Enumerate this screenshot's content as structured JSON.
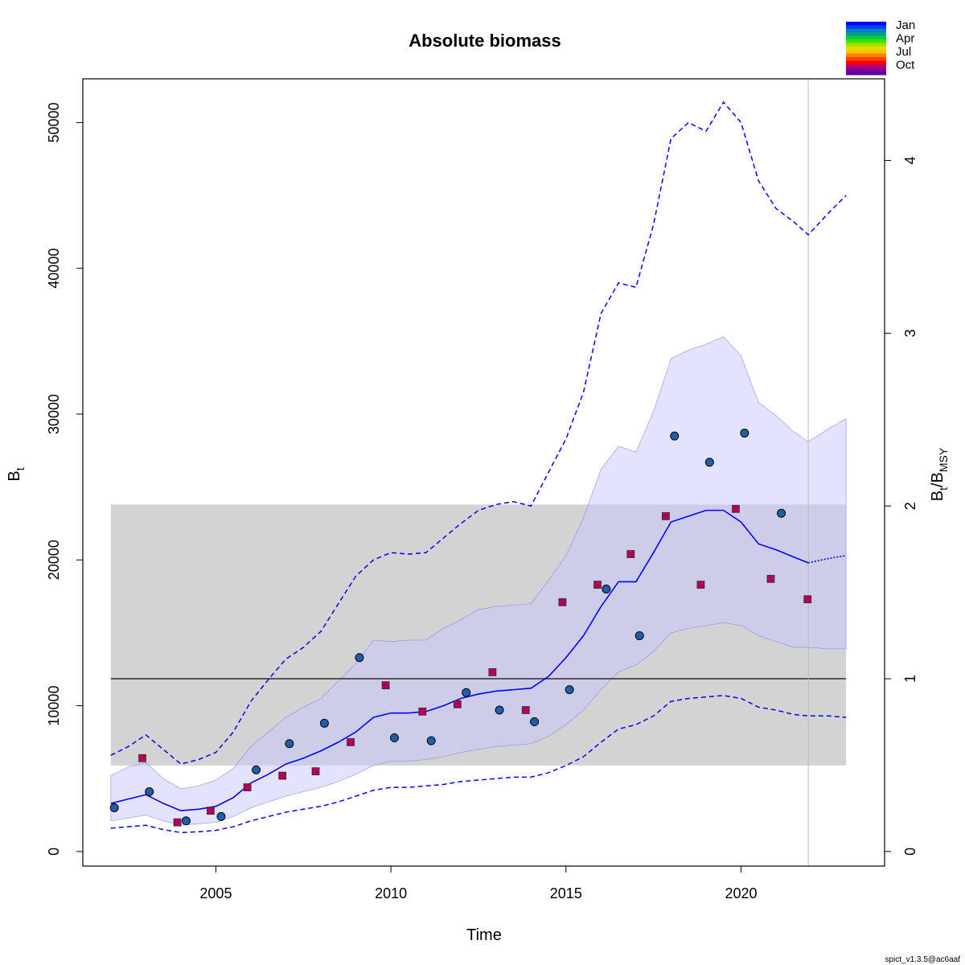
{
  "chart_data": {
    "type": "line",
    "title": "Absolute biomass",
    "xlabel": "Time",
    "ylabel": "B",
    "ylabel_sub": "t",
    "y2label_base": "B",
    "y2label_sub1": "t",
    "y2label_sep": "/B",
    "y2label_sub2": "MSY",
    "xlim": [
      2001.2,
      2024.1
    ],
    "ylim": [
      -1000,
      53000
    ],
    "x_ticks": [
      2005,
      2010,
      2015,
      2020
    ],
    "x_tick_labels": [
      "2005",
      "2010",
      "2015",
      "2020"
    ],
    "y_ticks": [
      0,
      10000,
      20000,
      30000,
      40000,
      50000
    ],
    "y_tick_labels": [
      "0",
      "10000",
      "20000",
      "30000",
      "40000",
      "50000"
    ],
    "y2_ticks": [
      0,
      1,
      2,
      3,
      4
    ],
    "y2_tick_labels": [
      "0",
      "1",
      "2",
      "3",
      "4"
    ],
    "bmsy": 11850,
    "bmsy_ci": [
      5900,
      23800
    ],
    "bmsy_band_x": [
      2002,
      2023
    ],
    "last_obs_time": 2021.92,
    "series": [
      {
        "name": "B estimate",
        "color": "#0000ff",
        "x": [
          2002,
          2002.5,
          2003,
          2003.5,
          2004,
          2004.5,
          2005,
          2005.5,
          2006,
          2006.5,
          2007,
          2007.5,
          2008,
          2008.5,
          2009,
          2009.5,
          2010,
          2010.5,
          2011,
          2011.5,
          2012,
          2012.5,
          2013,
          2013.5,
          2014,
          2014.5,
          2015,
          2015.5,
          2016,
          2016.5,
          2017,
          2017.5,
          2018,
          2018.5,
          2019,
          2019.5,
          2020,
          2020.5,
          2021,
          2021.5,
          2021.92
        ],
        "y": [
          3300,
          3600,
          3900,
          3300,
          2800,
          2900,
          3100,
          3700,
          4700,
          5300,
          6000,
          6400,
          6900,
          7500,
          8200,
          9200,
          9500,
          9500,
          9600,
          10000,
          10500,
          10800,
          11000,
          11100,
          11200,
          12000,
          13300,
          14800,
          16800,
          18500,
          18500,
          20500,
          22600,
          23000,
          23400,
          23400,
          22600,
          21100,
          20700,
          20200,
          19800
        ]
      },
      {
        "name": "B forecast",
        "color": "#0000ff",
        "x": [
          2021.92,
          2022.5,
          2023
        ],
        "y": [
          19800,
          20100,
          20300
        ]
      },
      {
        "name": "B 95% CI band",
        "color": "#dcdcfa",
        "x": [
          2002,
          2002.5,
          2003,
          2003.5,
          2004,
          2004.5,
          2005,
          2005.5,
          2006,
          2006.5,
          2007,
          2007.5,
          2008,
          2008.5,
          2009,
          2009.5,
          2010,
          2010.5,
          2011,
          2011.5,
          2012,
          2012.5,
          2013,
          2013.5,
          2014,
          2014.5,
          2015,
          2015.5,
          2016,
          2016.5,
          2017,
          2017.5,
          2018,
          2018.5,
          2019,
          2019.5,
          2020,
          2020.5,
          2021,
          2021.5,
          2021.92,
          2022.5,
          2023
        ],
        "upper": [
          5200,
          5800,
          6100,
          5000,
          4300,
          4500,
          4900,
          5700,
          7200,
          8200,
          9200,
          9900,
          10500,
          11700,
          12900,
          14500,
          14400,
          14500,
          14500,
          15300,
          15900,
          16600,
          16800,
          16900,
          17000,
          18600,
          20300,
          22900,
          26200,
          27800,
          27400,
          30200,
          33800,
          34400,
          34800,
          35300,
          34000,
          30800,
          29900,
          28800,
          28100,
          29000,
          29700
        ],
        "lower": [
          2100,
          2300,
          2500,
          2100,
          1800,
          1900,
          2000,
          2400,
          3000,
          3400,
          3800,
          4100,
          4400,
          4800,
          5300,
          5900,
          6200,
          6200,
          6300,
          6500,
          6800,
          7000,
          7200,
          7300,
          7400,
          7900,
          8700,
          9700,
          11100,
          12300,
          12800,
          13700,
          15000,
          15300,
          15500,
          15700,
          15500,
          14800,
          14400,
          14000,
          14000,
          13900,
          13900
        ]
      },
      {
        "name": "B 95% CI upper (dashed)",
        "color": "#0000ff",
        "x": [
          2002,
          2002.5,
          2003,
          2003.5,
          2004,
          2004.5,
          2005,
          2005.5,
          2006,
          2006.5,
          2007,
          2007.5,
          2008,
          2008.5,
          2009,
          2009.5,
          2010,
          2010.5,
          2011,
          2011.5,
          2012,
          2012.5,
          2013,
          2013.5,
          2014,
          2014.5,
          2015,
          2015.5,
          2016,
          2016.5,
          2017,
          2017.5,
          2018,
          2018.5,
          2019,
          2019.5,
          2020,
          2020.5,
          2021,
          2021.5,
          2021.92,
          2022.5,
          2023
        ],
        "y": [
          6600,
          7200,
          8000,
          7000,
          6000,
          6300,
          6800,
          8200,
          10300,
          11800,
          13200,
          14000,
          15100,
          17000,
          18900,
          20000,
          20500,
          20400,
          20500,
          21500,
          22500,
          23400,
          23800,
          24000,
          23700,
          26000,
          28300,
          31500,
          36900,
          39000,
          38700,
          43000,
          48900,
          50000,
          49400,
          51400,
          50000,
          46000,
          44100,
          43200,
          42300,
          43800,
          45000
        ]
      },
      {
        "name": "B 95% CI lower (dashed)",
        "color": "#0000ff",
        "x": [
          2002,
          2002.5,
          2003,
          2003.5,
          2004,
          2004.5,
          2005,
          2005.5,
          2006,
          2006.5,
          2007,
          2007.5,
          2008,
          2008.5,
          2009,
          2009.5,
          2010,
          2010.5,
          2011,
          2011.5,
          2012,
          2012.5,
          2013,
          2013.5,
          2014,
          2014.5,
          2015,
          2015.5,
          2016,
          2016.5,
          2017,
          2017.5,
          2018,
          2018.5,
          2019,
          2019.5,
          2020,
          2020.5,
          2021,
          2021.5,
          2021.92,
          2022.5,
          2023
        ],
        "y": [
          1600,
          1700,
          1800,
          1500,
          1300,
          1350,
          1450,
          1700,
          2100,
          2400,
          2700,
          2900,
          3100,
          3400,
          3800,
          4200,
          4400,
          4400,
          4500,
          4600,
          4800,
          4900,
          5000,
          5100,
          5100,
          5400,
          5900,
          6500,
          7500,
          8400,
          8700,
          9300,
          10300,
          10500,
          10600,
          10700,
          10500,
          9900,
          9700,
          9400,
          9300,
          9300,
          9200
        ]
      },
      {
        "name": "Index 1 (circles)",
        "color": "#1f5fa8",
        "x": [
          2002.1,
          2003.1,
          2004.15,
          2005.15,
          2006.15,
          2007.1,
          2008.1,
          2009.1,
          2010.1,
          2011.15,
          2012.15,
          2013.1,
          2014.1,
          2015.1,
          2016.15,
          2017.1,
          2018.1,
          2019.1,
          2020.1,
          2021.15
        ],
        "y": [
          3000,
          4100,
          2100,
          2400,
          5600,
          7400,
          8800,
          13300,
          7800,
          7600,
          10900,
          9700,
          8900,
          11100,
          18000,
          14800,
          28500,
          26700,
          28700,
          23200
        ]
      },
      {
        "name": "Index 2 (squares)",
        "color": "#b0005a",
        "x": [
          2002.9,
          2003.9,
          2004.85,
          2005.9,
          2006.9,
          2007.85,
          2008.85,
          2009.85,
          2010.9,
          2011.9,
          2012.9,
          2013.85,
          2014.9,
          2015.9,
          2016.85,
          2017.85,
          2018.85,
          2019.85,
          2020.85,
          2021.9
        ],
        "y": [
          6400,
          2000,
          2800,
          4400,
          5200,
          5500,
          7500,
          11400,
          9600,
          10100,
          12300,
          9700,
          17100,
          18300,
          20400,
          23000,
          18300,
          23500,
          18700,
          17300
        ]
      }
    ]
  },
  "legend": {
    "labels": [
      "Jan",
      "Apr",
      "Jul",
      "Oct"
    ],
    "colors": [
      "#0000ff",
      "#0040ff",
      "#0080c0",
      "#00a080",
      "#00cc40",
      "#40e000",
      "#a0e000",
      "#e0e000",
      "#ffc000",
      "#ff8000",
      "#ff4000",
      "#ff0000",
      "#c00060",
      "#8000a0",
      "#6000a0"
    ]
  },
  "footer": "spict_v1.3.5@ac6aaf"
}
